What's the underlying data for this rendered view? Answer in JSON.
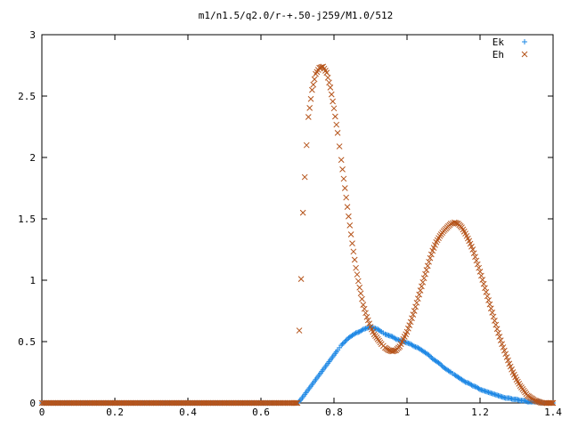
{
  "chart_data": {
    "type": "scatter",
    "title": "m1/n1.5/q2.0/r-+.50-j259/M1.0/512",
    "xlabel": "",
    "ylabel": "",
    "xlim": [
      0,
      1.4
    ],
    "ylim": [
      0,
      3
    ],
    "x_ticks": [
      "0",
      "0.2",
      "0.4",
      "0.6",
      "0.8",
      "1",
      "1.2",
      "1.4"
    ],
    "y_ticks": [
      "0",
      "0.5",
      "1",
      "1.5",
      "2",
      "2.5",
      "3"
    ],
    "grid": false,
    "legend_position": "top-right",
    "series": [
      {
        "name": "Ek",
        "marker": "plus",
        "color": "#1e88e5",
        "x": [
          0.0,
          0.1,
          0.2,
          0.3,
          0.4,
          0.5,
          0.6,
          0.7,
          0.71,
          0.72,
          0.73,
          0.74,
          0.75,
          0.76,
          0.77,
          0.78,
          0.79,
          0.8,
          0.81,
          0.82,
          0.83,
          0.84,
          0.85,
          0.86,
          0.87,
          0.88,
          0.89,
          0.9,
          0.91,
          0.92,
          0.93,
          0.94,
          0.95,
          0.96,
          0.97,
          0.98,
          0.99,
          1.0,
          1.01,
          1.02,
          1.03,
          1.04,
          1.05,
          1.06,
          1.07,
          1.08,
          1.09,
          1.1,
          1.11,
          1.12,
          1.13,
          1.14,
          1.15,
          1.16,
          1.17,
          1.18,
          1.19,
          1.2,
          1.21,
          1.22,
          1.23,
          1.24,
          1.25,
          1.26,
          1.27,
          1.28,
          1.29,
          1.3,
          1.31,
          1.32,
          1.33,
          1.34,
          1.35,
          1.36,
          1.37,
          1.38,
          1.39,
          1.4
        ],
        "y": [
          0.0,
          0.0,
          0.0,
          0.0,
          0.0,
          0.0,
          0.0,
          0.0,
          0.03,
          0.07,
          0.11,
          0.15,
          0.19,
          0.23,
          0.27,
          0.31,
          0.35,
          0.39,
          0.43,
          0.47,
          0.5,
          0.53,
          0.55,
          0.57,
          0.58,
          0.6,
          0.61,
          0.62,
          0.61,
          0.6,
          0.58,
          0.56,
          0.55,
          0.54,
          0.52,
          0.51,
          0.5,
          0.49,
          0.48,
          0.46,
          0.45,
          0.43,
          0.41,
          0.39,
          0.36,
          0.34,
          0.32,
          0.29,
          0.27,
          0.25,
          0.23,
          0.21,
          0.19,
          0.17,
          0.16,
          0.14,
          0.13,
          0.11,
          0.1,
          0.09,
          0.08,
          0.07,
          0.06,
          0.05,
          0.04,
          0.04,
          0.03,
          0.03,
          0.02,
          0.02,
          0.01,
          0.01,
          0.01,
          0.01,
          0.0,
          0.0,
          0.0,
          0.0
        ]
      },
      {
        "name": "Eh",
        "marker": "cross",
        "color": "#b5541b",
        "x": [
          0.0,
          0.1,
          0.2,
          0.3,
          0.4,
          0.5,
          0.6,
          0.69,
          0.7,
          0.705,
          0.71,
          0.715,
          0.72,
          0.725,
          0.73,
          0.74,
          0.75,
          0.76,
          0.77,
          0.78,
          0.79,
          0.8,
          0.81,
          0.82,
          0.83,
          0.84,
          0.85,
          0.86,
          0.87,
          0.88,
          0.89,
          0.9,
          0.91,
          0.92,
          0.93,
          0.94,
          0.95,
          0.96,
          0.97,
          0.98,
          0.99,
          1.0,
          1.01,
          1.02,
          1.03,
          1.04,
          1.05,
          1.06,
          1.07,
          1.08,
          1.09,
          1.1,
          1.11,
          1.12,
          1.13,
          1.14,
          1.15,
          1.16,
          1.17,
          1.18,
          1.19,
          1.2,
          1.21,
          1.22,
          1.23,
          1.24,
          1.25,
          1.26,
          1.27,
          1.28,
          1.29,
          1.3,
          1.31,
          1.32,
          1.33,
          1.34,
          1.35,
          1.36,
          1.37,
          1.38,
          1.39,
          1.4
        ],
        "y": [
          0.0,
          0.0,
          0.0,
          0.0,
          0.0,
          0.0,
          0.0,
          0.0,
          0.0,
          0.59,
          1.01,
          1.55,
          1.84,
          2.1,
          2.33,
          2.55,
          2.68,
          2.73,
          2.74,
          2.69,
          2.57,
          2.4,
          2.2,
          1.98,
          1.75,
          1.52,
          1.3,
          1.1,
          0.94,
          0.8,
          0.7,
          0.62,
          0.56,
          0.52,
          0.48,
          0.45,
          0.43,
          0.42,
          0.43,
          0.46,
          0.52,
          0.58,
          0.66,
          0.75,
          0.85,
          0.95,
          1.05,
          1.15,
          1.24,
          1.31,
          1.36,
          1.4,
          1.43,
          1.46,
          1.47,
          1.46,
          1.43,
          1.38,
          1.32,
          1.25,
          1.16,
          1.07,
          0.97,
          0.87,
          0.77,
          0.67,
          0.57,
          0.48,
          0.4,
          0.32,
          0.25,
          0.19,
          0.14,
          0.1,
          0.06,
          0.04,
          0.02,
          0.01,
          0.0,
          0.0,
          0.0,
          0.0
        ]
      }
    ]
  }
}
